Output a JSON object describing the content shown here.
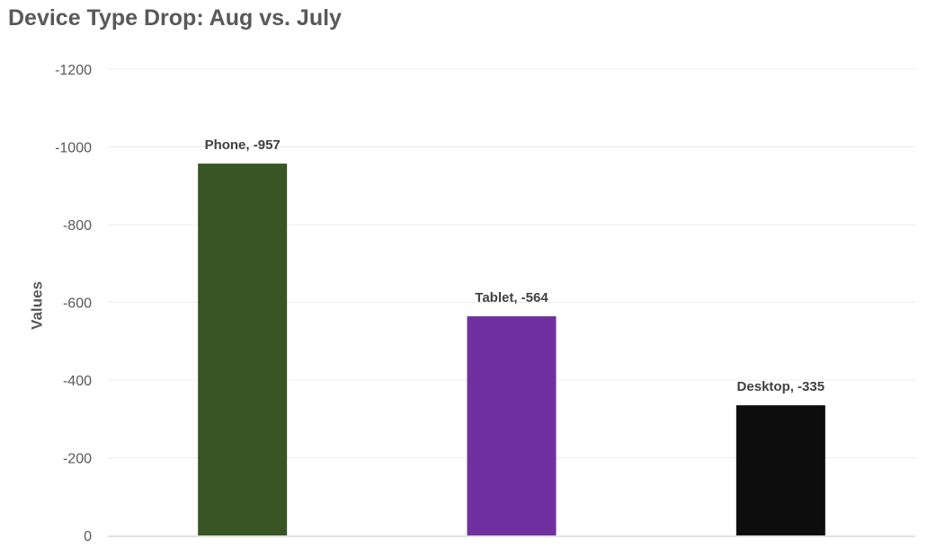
{
  "chart_data": {
    "type": "bar",
    "title": "Device Type Drop: Aug vs. July",
    "xlabel": "",
    "ylabel": "Values",
    "y_axis_reversed": true,
    "ylim": [
      0,
      -1200
    ],
    "y_ticks": [
      0,
      -200,
      -400,
      -600,
      -800,
      -1000,
      -1200
    ],
    "y_tick_labels": [
      "0",
      "-200",
      "-400",
      "-600",
      "-800",
      "-1000",
      "-1200"
    ],
    "grid": true,
    "legend": "none",
    "categories": [
      "Phone",
      "Tablet",
      "Desktop"
    ],
    "values": [
      -957,
      -564,
      -335
    ],
    "data_labels": [
      "Phone, -957",
      "Tablet, -564",
      "Desktop, -335"
    ],
    "colors": [
      "#375623",
      "#7030A0",
      "#0D0D0D"
    ]
  }
}
